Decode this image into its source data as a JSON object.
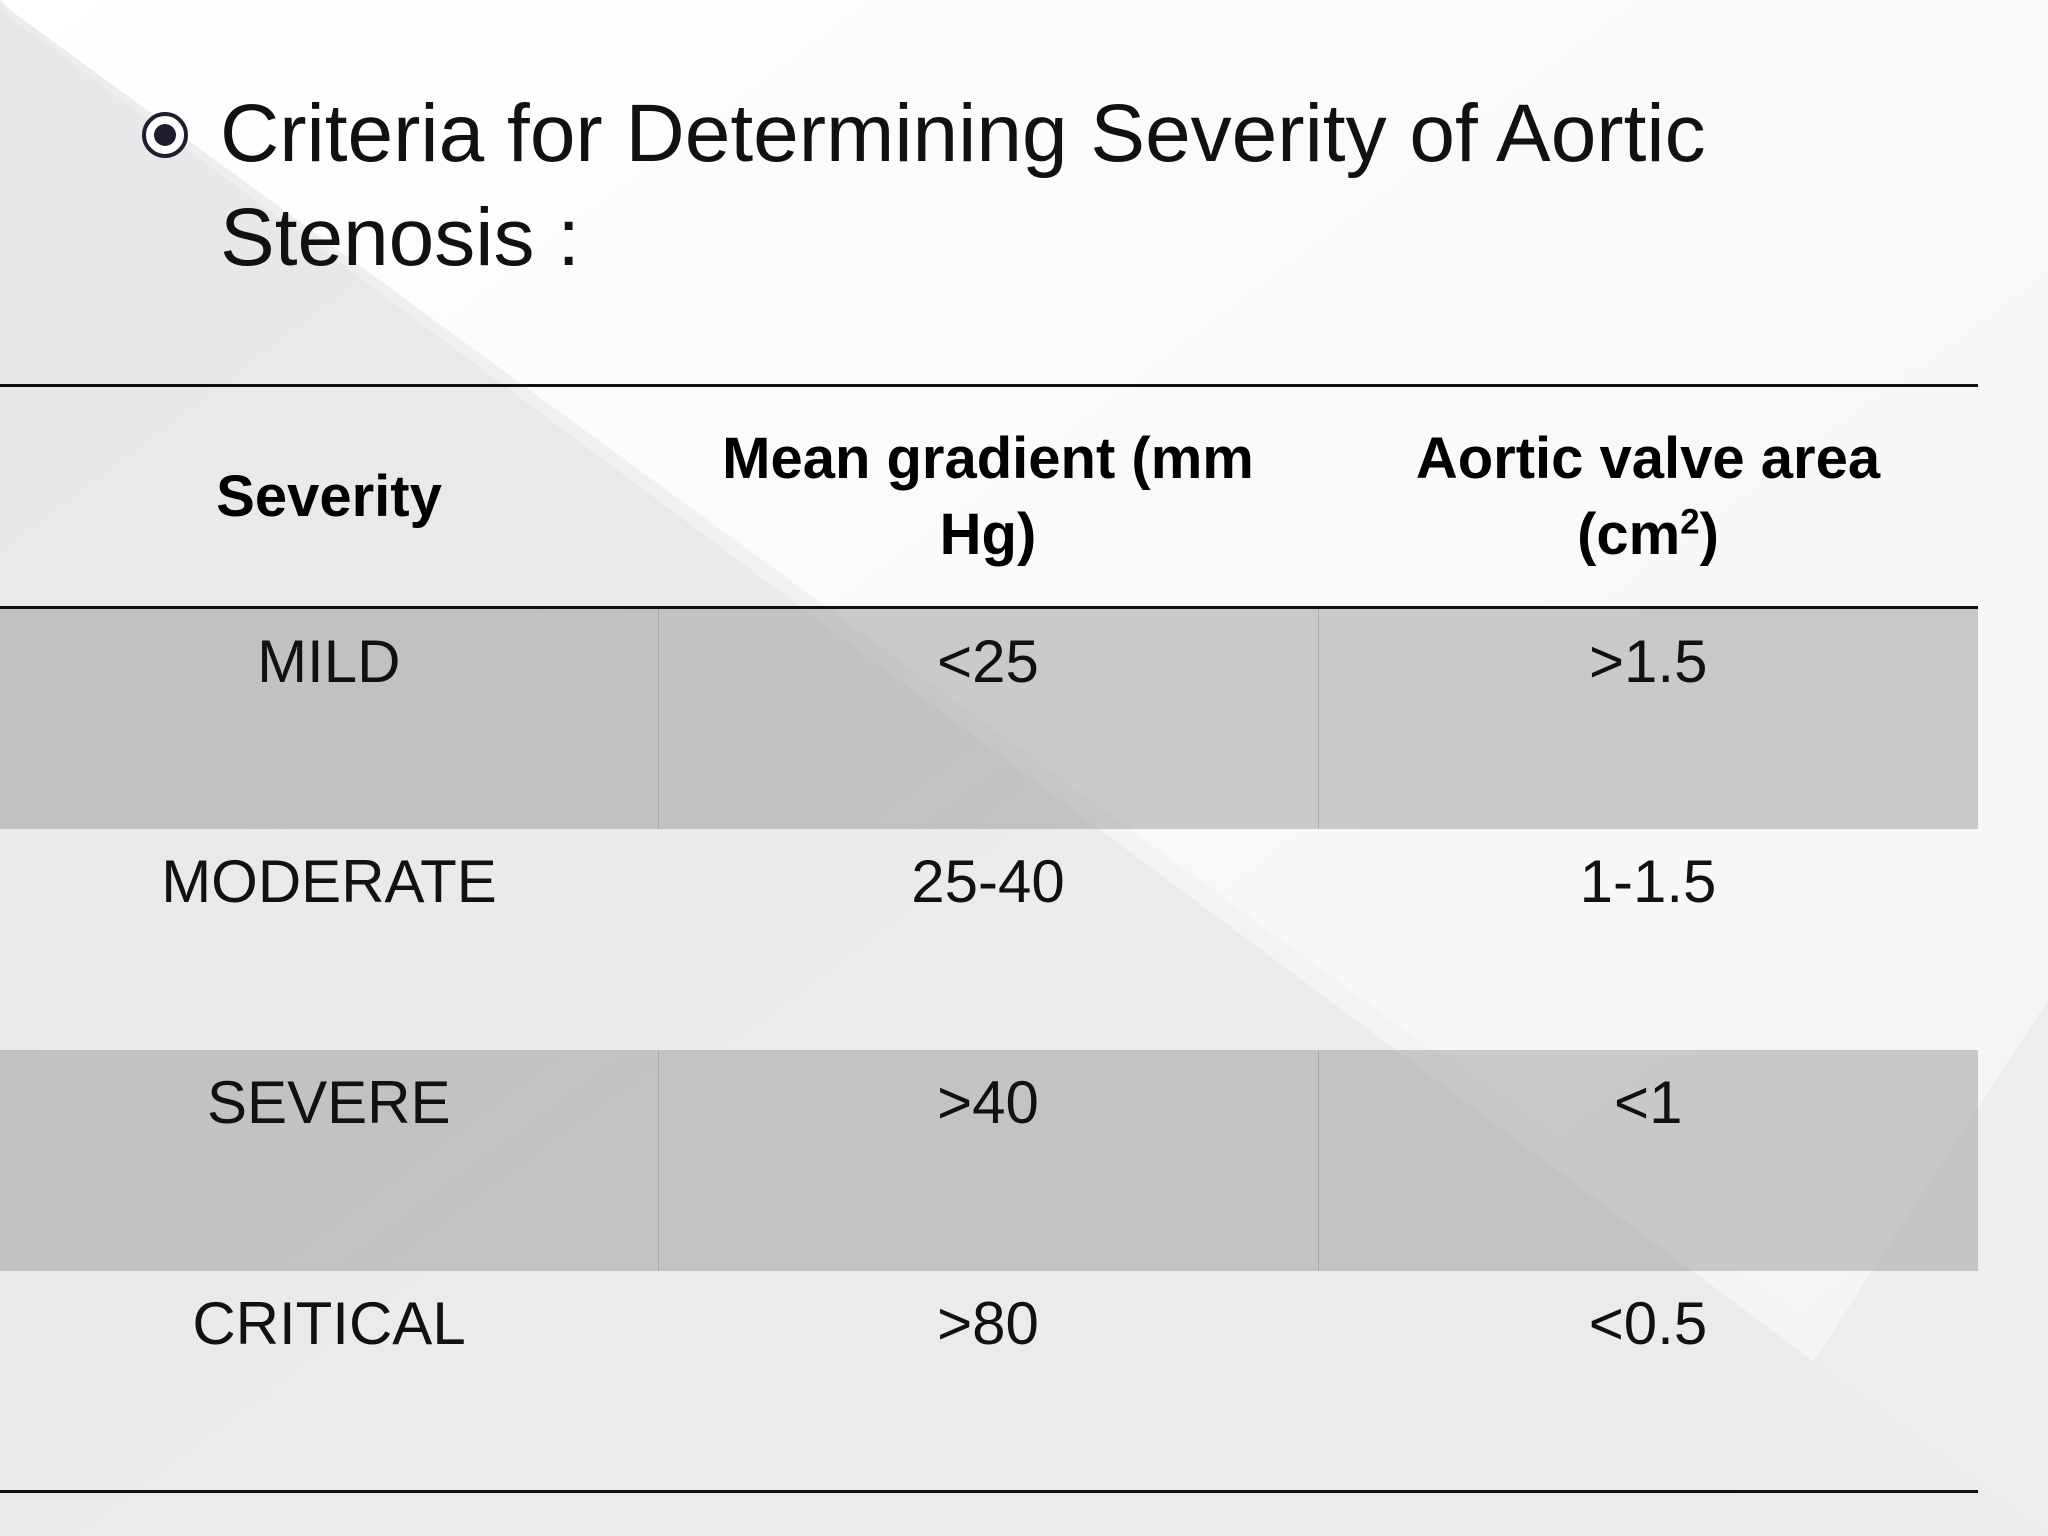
{
  "slide": {
    "title_line1": "Criteria for Determining Severity of Aortic",
    "title_line2": "Stenosis  :",
    "bullet_icon": "radio-bullet-icon"
  },
  "table": {
    "headers": {
      "severity": "Severity",
      "gradient_line1": "Mean gradient (mm",
      "gradient_line2": "Hg)",
      "area_line1": "Aortic valve area",
      "area_line2_prefix": "(cm",
      "area_line2_sup": "2",
      "area_line2_suffix": ")"
    },
    "rows": [
      {
        "severity": "MILD",
        "gradient": "<25",
        "area": ">1.5"
      },
      {
        "severity": "MODERATE",
        "gradient": "25-40",
        "area": "1-1.5"
      },
      {
        "severity": "SEVERE",
        "gradient": ">40",
        "area": "<1"
      },
      {
        "severity": "CRITICAL",
        "gradient": ">80",
        "area": "<0.5"
      }
    ]
  },
  "colors": {
    "shade_dark": "#a9a9ab",
    "shade_light": "#e6e6e8",
    "text": "#111111"
  }
}
